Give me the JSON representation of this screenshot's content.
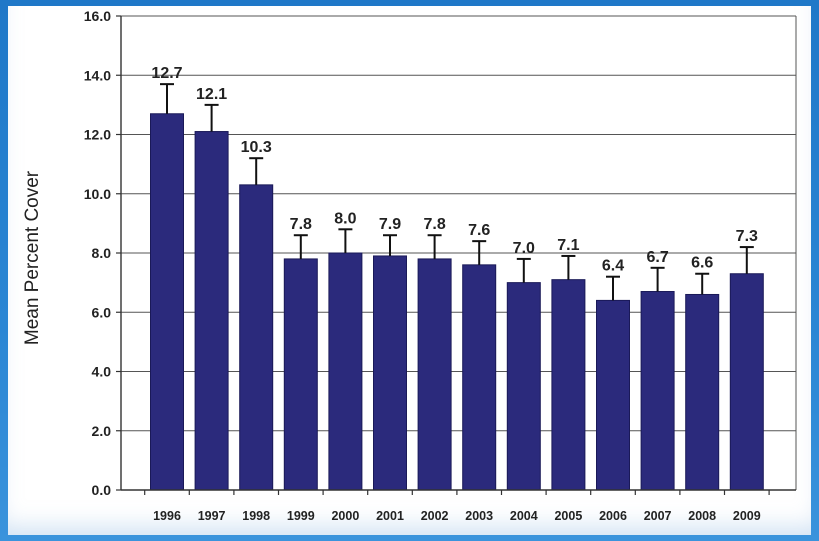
{
  "chart_data": {
    "type": "bar",
    "title": "",
    "xlabel": "",
    "ylabel": "Mean Percent Cover",
    "ylim": [
      0,
      16
    ],
    "yticks": [
      "0.0",
      "2.0",
      "4.0",
      "6.0",
      "8.0",
      "10.0",
      "12.0",
      "14.0",
      "16.0"
    ],
    "grid": true,
    "categories": [
      "1996",
      "1997",
      "1998",
      "1999",
      "2000",
      "2001",
      "2002",
      "2003",
      "2004",
      "2005",
      "2006",
      "2007",
      "2008",
      "2009"
    ],
    "values": [
      12.7,
      12.1,
      10.3,
      7.8,
      8.0,
      7.9,
      7.8,
      7.6,
      7.0,
      7.1,
      6.4,
      6.7,
      6.6,
      7.3
    ],
    "value_labels": [
      "12.7",
      "12.1",
      "10.3",
      "7.8",
      "8.0",
      "7.9",
      "7.8",
      "7.6",
      "7.0",
      "7.1",
      "6.4",
      "6.7",
      "6.6",
      "7.3"
    ],
    "error_upper": [
      13.7,
      13.0,
      11.2,
      8.6,
      8.8,
      8.6,
      8.6,
      8.4,
      7.8,
      7.9,
      7.2,
      7.5,
      7.3,
      8.2
    ],
    "bar_color": "#2b2a7c",
    "grid_color": "#555555"
  }
}
